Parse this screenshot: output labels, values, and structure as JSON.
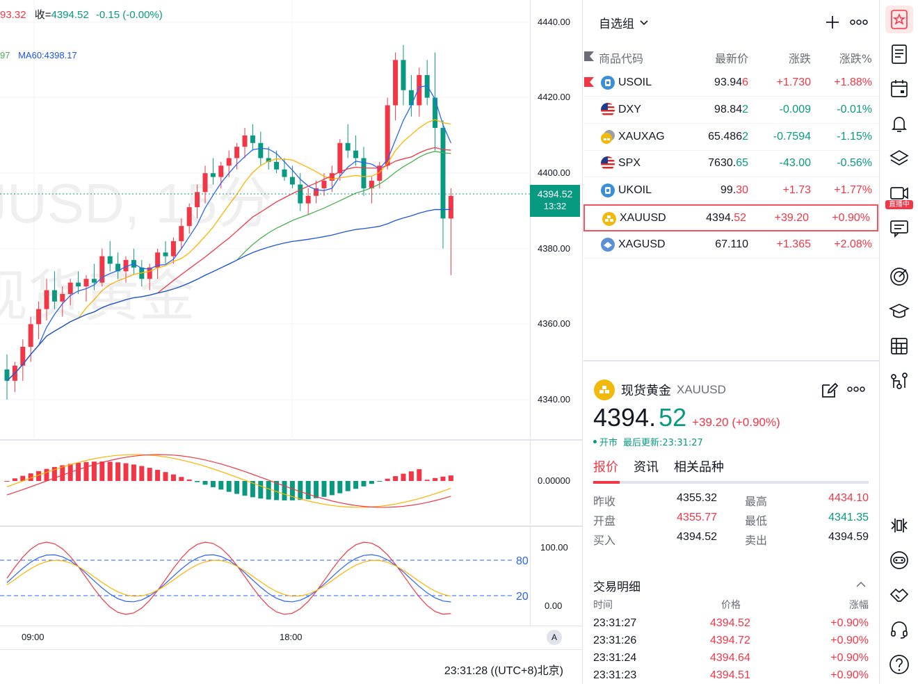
{
  "chart": {
    "legend_ohlc_prefix": "93.32",
    "legend_close_label": "收=",
    "legend_close": "4394.52",
    "legend_change": "-0.15 (-0.00%)",
    "legend_ma_prefix": "97",
    "legend_ma60": "MA60:4398.17",
    "watermark_symbol": "JUSD, 15分",
    "watermark_name": "现货黄金",
    "price_ticks": [
      "4440.00",
      "4420.00",
      "4400.00",
      "4380.00",
      "4360.00",
      "4340.00"
    ],
    "last_price_tag": "4394.52",
    "last_price_countdown": "13:32",
    "macd_tick": "0.00000",
    "kdj_ticks": [
      "100.00",
      "0.00"
    ],
    "kdj_levels": [
      "80",
      "20"
    ],
    "time_ticks": [
      "09:00",
      "18:00"
    ],
    "auto_scale_label": "A",
    "clock": "23:31:28 ((UTC+8)北京)",
    "colors": {
      "up": "#f23645",
      "down": "#089981",
      "ma5": "#2962ff",
      "ma10": "#ffb300",
      "ma20": "#f23645",
      "ma30": "#4caf50",
      "ma60": "#1e53e5"
    }
  },
  "watchlist": {
    "title": "自选组",
    "headers": {
      "symbol": "商品代码",
      "last": "最新价",
      "chg": "涨跌",
      "pct": "涨跌%"
    },
    "rows": [
      {
        "symbol": "USOIL",
        "last_main": "93.94",
        "last_tail": "6",
        "chg": "+1.730",
        "pct": "+1.88%",
        "dir": "up",
        "icon": "oil-icon",
        "flag": true
      },
      {
        "symbol": "DXY",
        "last_main": "98.84",
        "last_tail": "2",
        "chg": "-0.009",
        "pct": "-0.01%",
        "dir": "down",
        "icon": "us-flag-icon"
      },
      {
        "symbol": "XAUXAG",
        "last_main": "65.486",
        "last_tail": "2",
        "chg": "-0.7594",
        "pct": "-1.15%",
        "dir": "down",
        "icon": "gold-silver-icon"
      },
      {
        "symbol": "SPX",
        "last_main": "7630.",
        "last_tail": "65",
        "chg": "-43.00",
        "pct": "-0.56%",
        "dir": "down",
        "icon": "us-flag-icon"
      },
      {
        "symbol": "UKOIL",
        "last_main": "99.",
        "last_tail": "30",
        "chg": "+1.73",
        "pct": "+1.77%",
        "dir": "up",
        "icon": "oil-icon"
      },
      {
        "symbol": "XAUUSD",
        "last_main": "4394.",
        "last_tail": "52",
        "chg": "+39.20",
        "pct": "+0.90%",
        "dir": "up",
        "icon": "gold-icon",
        "selected": true
      },
      {
        "symbol": "XAGUSD",
        "last_main": "67.110",
        "last_tail": "",
        "chg": "+1.365",
        "pct": "+2.08%",
        "dir": "up",
        "icon": "silver-icon"
      }
    ]
  },
  "detail": {
    "name": "现货黄金",
    "symbol": "XAUUSD",
    "price_main": "4394.",
    "price_tail": "52",
    "change": "+39.20 (+0.90%)",
    "status": "开市",
    "updated": "最后更新:23:31:27",
    "tabs": [
      "报价",
      "资讯",
      "相关品种"
    ],
    "stats": [
      {
        "l1": "昨收",
        "v1": "4355.32",
        "c1": "",
        "l2": "最高",
        "v2": "4434.10",
        "c2": "up"
      },
      {
        "l1": "开盘",
        "v1": "4355.77",
        "c1": "up",
        "l2": "最低",
        "v2": "4341.35",
        "c2": "down"
      },
      {
        "l1": "买入",
        "v1": "4394.52",
        "c1": "",
        "l2": "卖出",
        "v2": "4394.59",
        "c2": ""
      }
    ],
    "trades_title": "交易明细",
    "trades_headers": {
      "time": "时间",
      "price": "价格",
      "pct": "涨幅"
    },
    "trades": [
      {
        "time": "23:31:27",
        "price": "4394.52",
        "pct": "+0.90%"
      },
      {
        "time": "23:31:26",
        "price": "4394.72",
        "pct": "+0.90%"
      },
      {
        "time": "23:31:24",
        "price": "4394.64",
        "pct": "+0.90%"
      },
      {
        "time": "23:31:23",
        "price": "4394.51",
        "pct": "+0.90%"
      }
    ]
  },
  "sidebar": {
    "live_badge": "直播中",
    "icons": [
      "watchlist-icon",
      "news-icon",
      "calendar-icon",
      "alert-bell-icon",
      "layers-icon",
      "live-video-icon",
      "chat-icon",
      "target-icon",
      "education-icon",
      "table-grid-icon",
      "network-icon",
      "dom-icon",
      "bot-icon",
      "handshake-icon",
      "headset-icon",
      "help-icon"
    ]
  }
}
